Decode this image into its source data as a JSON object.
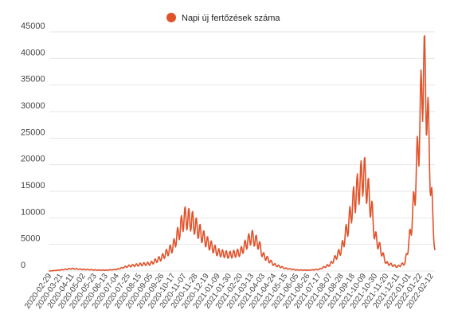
{
  "chart_data": {
    "type": "line",
    "title": "",
    "xlabel": "",
    "ylabel": "",
    "legend": {
      "position": "top",
      "entries": [
        "Napi új fertőzések száma"
      ]
    },
    "grid": true,
    "ylim": [
      0,
      45000
    ],
    "y_ticks": [
      "0",
      "5000",
      "10000",
      "15000",
      "20000",
      "25000",
      "30000",
      "35000",
      "40000",
      "45000"
    ],
    "x_ticks": [
      "2020-02-29",
      "2020-03-21",
      "2020-04-11",
      "2020-05-02",
      "2020-05-23",
      "2020-06-13",
      "2020-07-04",
      "2020-07-25",
      "2020-08-15",
      "2020-09-05",
      "2020-09-26",
      "2020-10-17",
      "2020-11-07",
      "2020-11-28",
      "2020-12-19",
      "2021-01-09",
      "2021-01-30",
      "2021-02-20",
      "2021-03-13",
      "2021-04-03",
      "2021-04-24",
      "2021-05-15",
      "2021-06-05",
      "2021-06-26",
      "2021-07-17",
      "2021-08-07",
      "2021-08-28",
      "2021-09-18",
      "2021-10-09",
      "2021-10-30",
      "2021-11-20",
      "2021-12-11",
      "2022-01-01",
      "2022-01-22",
      "2022-02-12"
    ],
    "series": [
      {
        "name": "Napi új fertőzések száma",
        "color": "#e0522a",
        "x": [
          "2020-02-29",
          "2020-03-21",
          "2020-04-11",
          "2020-05-02",
          "2020-05-23",
          "2020-06-13",
          "2020-07-04",
          "2020-07-25",
          "2020-08-15",
          "2020-09-05",
          "2020-09-26",
          "2020-10-17",
          "2020-10-31",
          "2020-11-07",
          "2020-11-21",
          "2020-11-28",
          "2020-12-19",
          "2021-01-09",
          "2021-01-30",
          "2021-02-20",
          "2021-03-06",
          "2021-03-13",
          "2021-03-27",
          "2021-04-03",
          "2021-04-24",
          "2021-05-15",
          "2021-06-05",
          "2021-06-26",
          "2021-07-17",
          "2021-08-07",
          "2021-08-28",
          "2021-09-11",
          "2021-09-18",
          "2021-10-02",
          "2021-10-09",
          "2021-10-23",
          "2021-10-30",
          "2021-11-20",
          "2021-12-11",
          "2021-12-25",
          "2022-01-01",
          "2022-01-08",
          "2022-01-15",
          "2022-01-22",
          "2022-01-29",
          "2022-02-05",
          "2022-02-12",
          "2022-02-19"
        ],
        "values": [
          0,
          200,
          450,
          300,
          200,
          150,
          300,
          900,
          1200,
          1400,
          2500,
          4500,
          8000,
          10000,
          9500,
          8500,
          5500,
          3500,
          3000,
          3500,
          5500,
          6500,
          5000,
          3000,
          1200,
          500,
          200,
          150,
          300,
          1200,
          4000,
          9000,
          12500,
          16500,
          18500,
          12000,
          6500,
          1500,
          800,
          1500,
          5000,
          10000,
          18000,
          28000,
          39000,
          30000,
          15000,
          4000
        ]
      }
    ]
  }
}
